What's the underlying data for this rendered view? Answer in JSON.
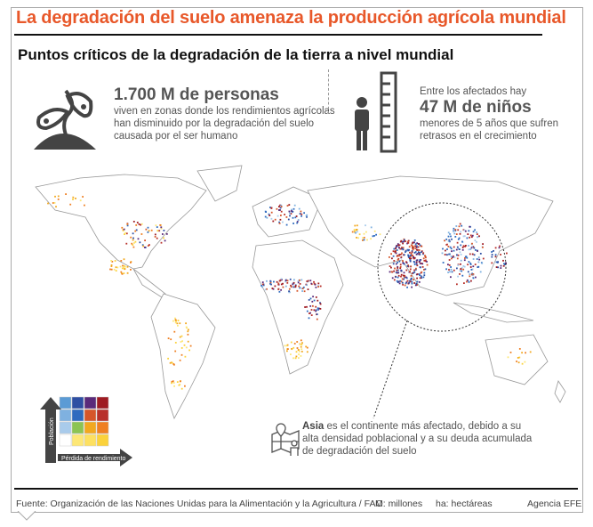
{
  "header": {
    "title": "La degradación del suelo amenaza la producción agrícola mundial",
    "subtitle": "Puntos críticos de la degradación de la tierra a nivel mundial",
    "title_color": "#e8582a"
  },
  "stats": [
    {
      "icon": "plant-sprout-icon",
      "pre": "",
      "value": "1.700 M de personas",
      "text_lines": [
        "viven en zonas donde los rendimientos agrícolas",
        "han disminuido por la degradación del suelo",
        "causada por el ser humano"
      ]
    },
    {
      "icon": "child-height-ruler-icon",
      "pre": "Entre los afectados hay",
      "value": "47 M de niños",
      "text_lines": [
        "menores de 5 años que sufren",
        "retrasos en el crecimiento"
      ]
    }
  ],
  "legend": {
    "y_label": "Población",
    "x_label": "Pérdida de rendimiento",
    "grid_colors": [
      [
        "#5b9bd5",
        "#2e4fa3",
        "#5a2a7a",
        "#9e1b22"
      ],
      [
        "#7fb1e0",
        "#2f6bbf",
        "#d6562a",
        "#b8302a"
      ],
      [
        "#a9cbeb",
        "#8cc453",
        "#f2a81f",
        "#ef7f22"
      ],
      [
        "#ffffff",
        "#fde776",
        "#fde060",
        "#fbd23b"
      ]
    ]
  },
  "annotation": {
    "icon": "map-pin-person-icon",
    "bold": "Asia",
    "text": " es el continente más afectado, debido a su alta densidad poblacional y a su deuda acumulada de degradación del suelo"
  },
  "footer": {
    "source": "Fuente: Organización de las Naciones Unidas para la Alimentación y la Agricultura / FAO",
    "abbr1": "M: millones",
    "abbr2": "ha: hectáreas",
    "agency": "Agencia EFE"
  }
}
